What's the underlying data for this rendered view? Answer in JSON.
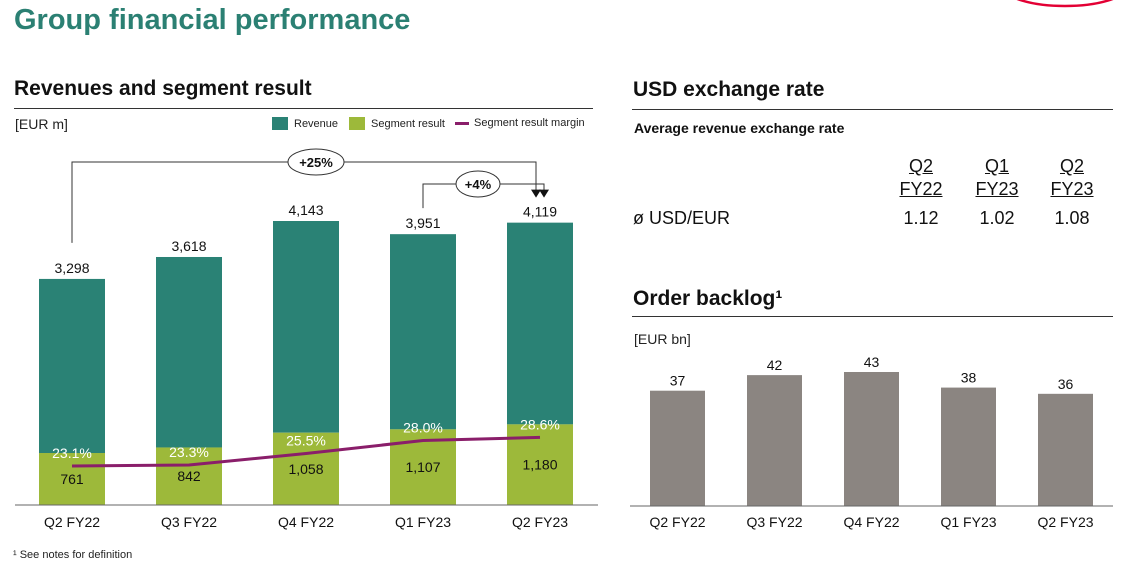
{
  "page_title": "Group financial performance",
  "logo_text": "infineon",
  "footnote": "¹ See notes for definition",
  "colors": {
    "revenue": "#2a8275",
    "segment_result": "#9db93a",
    "margin_line": "#8a1e6a",
    "backlog": "#8b8581",
    "title": "#2b8073"
  },
  "chart_data": [
    {
      "type": "bar",
      "stacked": true,
      "title": "Revenues and segment result",
      "unit": "[EUR m]",
      "categories": [
        "Q2 FY22",
        "Q3 FY22",
        "Q4 FY22",
        "Q1 FY23",
        "Q2 FY23"
      ],
      "series": [
        {
          "name": "Revenue",
          "values": [
            3298,
            3618,
            4143,
            3951,
            4119
          ],
          "labels": [
            "3,298",
            "3,618",
            "4,143",
            "3,951",
            "4,119"
          ]
        },
        {
          "name": "Segment result",
          "values": [
            761,
            842,
            1058,
            1107,
            1180
          ],
          "labels": [
            "761",
            "842",
            "1,058",
            "1,107",
            "1,180"
          ]
        },
        {
          "name": "Segment result margin",
          "type": "line",
          "values": [
            23.1,
            23.3,
            25.5,
            28.0,
            28.6
          ],
          "labels": [
            "23.1%",
            "23.3%",
            "25.5%",
            "28.0%",
            "28.6%"
          ]
        }
      ],
      "annotations": [
        {
          "text": "+25%",
          "from": "Q2 FY22",
          "to": "Q2 FY23"
        },
        {
          "text": "+4%",
          "from": "Q1 FY23",
          "to": "Q2 FY23"
        }
      ],
      "legend_position": "top-right"
    },
    {
      "type": "table",
      "title": "USD exchange rate",
      "subtitle": "Average revenue exchange rate",
      "columns": [
        [
          "Q2",
          "FY22"
        ],
        [
          "Q1",
          "FY23"
        ],
        [
          "Q2",
          "FY23"
        ]
      ],
      "rows": [
        {
          "label": "ø USD/EUR",
          "values": [
            "1.12",
            "1.02",
            "1.08"
          ]
        }
      ]
    },
    {
      "type": "bar",
      "title": "Order backlog¹",
      "unit": "[EUR bn]",
      "categories": [
        "Q2 FY22",
        "Q3 FY22",
        "Q4 FY22",
        "Q1 FY23",
        "Q2 FY23"
      ],
      "values": [
        37,
        42,
        43,
        38,
        36
      ]
    }
  ]
}
